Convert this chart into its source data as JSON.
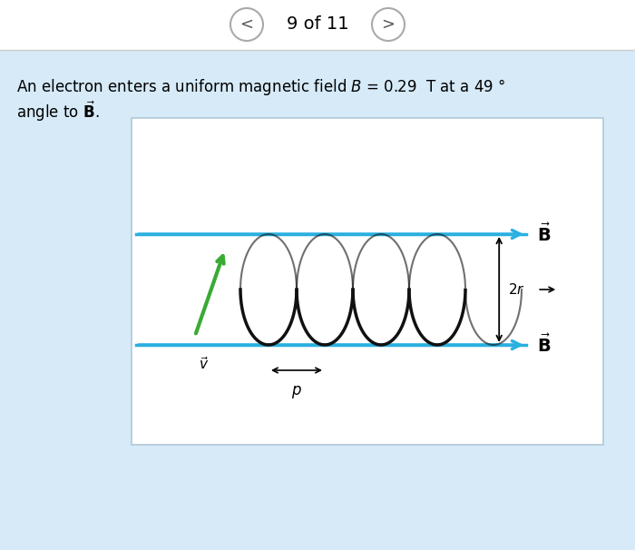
{
  "page_bg": "#cde8f5",
  "panel_bg": "#daeef8",
  "diagram_bg": "#ffffff",
  "nav_text": "9 of 11",
  "blue_line_color": "#2ab0e0",
  "helix_color": "#111111",
  "v_arrow_color": "#3aaa35",
  "figsize": [
    7.0,
    6.06
  ],
  "dpi": 100
}
